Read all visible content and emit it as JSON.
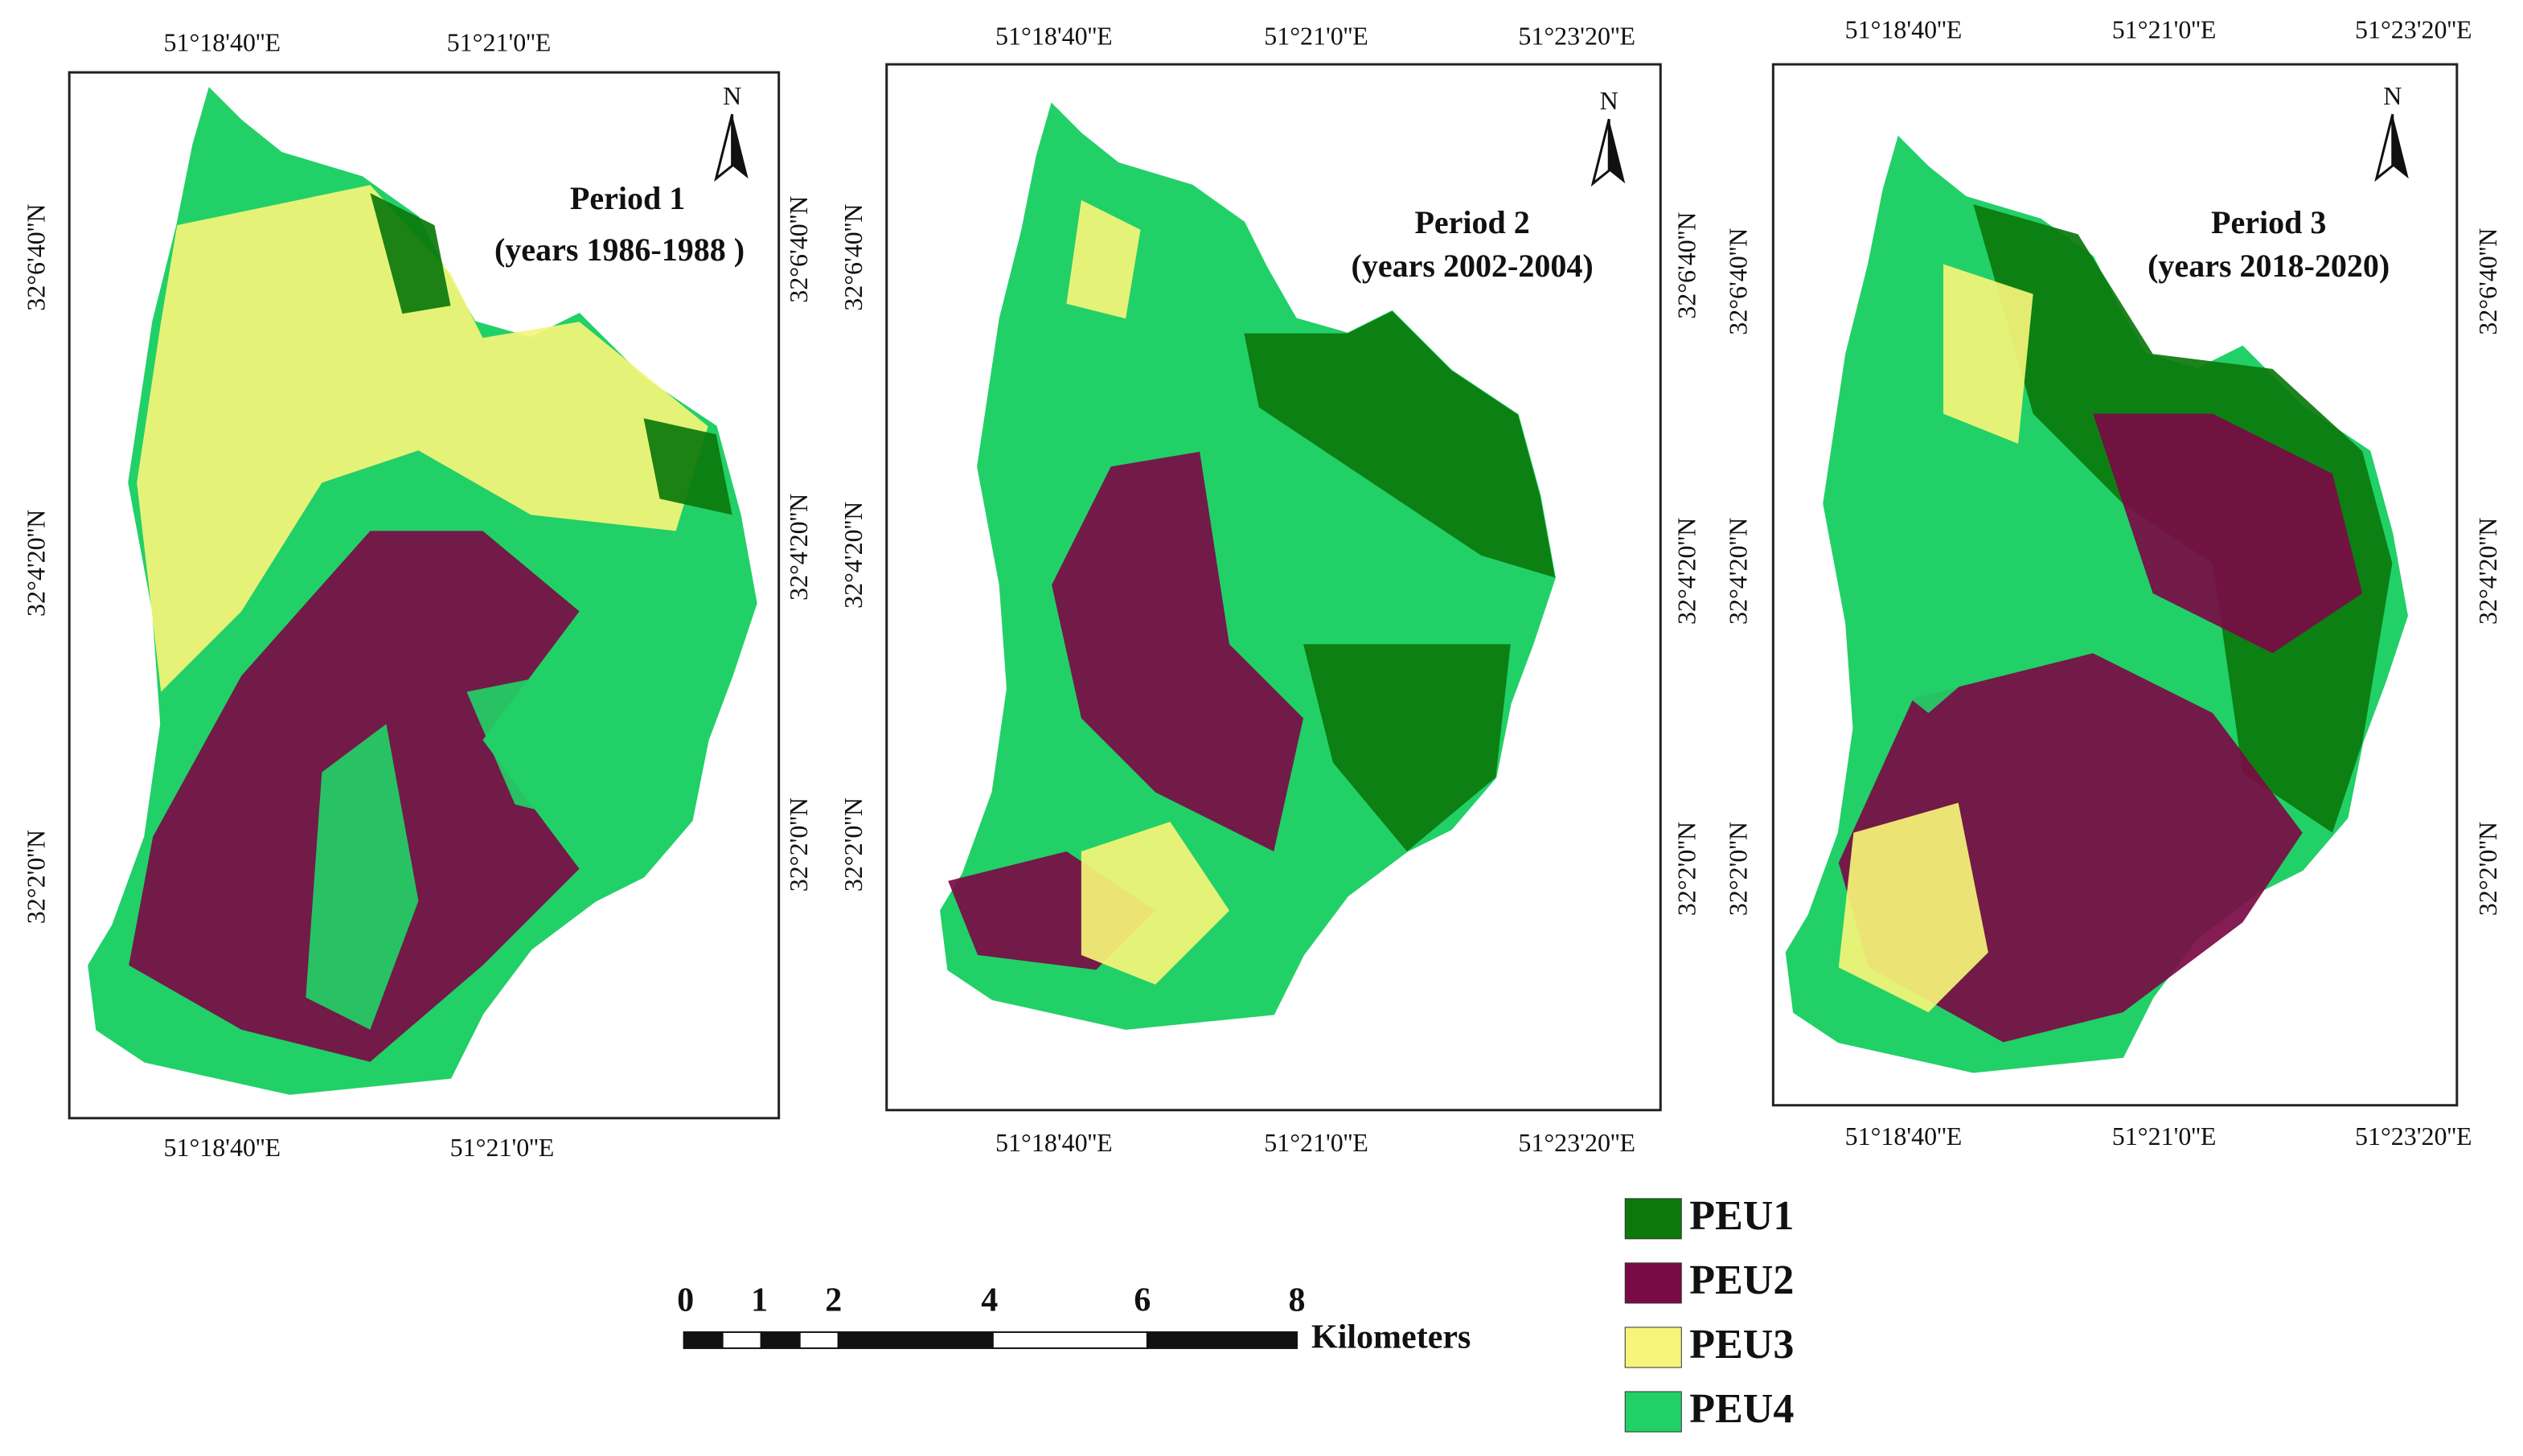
{
  "panels": [
    {
      "title": "Period 1",
      "subtitle": "(years 1986-1988 )",
      "north": "N",
      "top_ticks": [
        "51°18'40''E",
        "51°21'0''E"
      ],
      "bottom_ticks": [
        "51°18'40''E",
        "51°21'0''E"
      ],
      "left_ticks": [
        "32°6'40''N",
        "32°4'20''N",
        "32°2'0''N"
      ],
      "right_ticks": [
        "32°6'40''N",
        "32°4'20''N",
        "32°2'0''N"
      ]
    },
    {
      "title": "Period 2",
      "subtitle": "(years 2002-2004)",
      "north": "N",
      "top_ticks": [
        "51°18'40''E",
        "51°21'0''E",
        "51°23'20''E"
      ],
      "bottom_ticks": [
        "51°18'40''E",
        "51°21'0''E",
        "51°23'20''E"
      ],
      "left_ticks": [
        "32°6'40''N",
        "32°4'20''N",
        "32°2'0''N"
      ],
      "right_ticks": [
        "32°6'40''N",
        "32°4'20''N",
        "32°2'0''N"
      ]
    },
    {
      "title": "Period 3",
      "subtitle": "(years 2018-2020)",
      "north": "N",
      "top_ticks": [
        "51°18'40''E",
        "51°21'0''E",
        "51°23'20''E"
      ],
      "bottom_ticks": [
        "51°18'40''E",
        "51°21'0''E",
        "51°23'20''E"
      ],
      "left_ticks": [
        "32°6'40''N",
        "32°4'20''N",
        "32°2'0''N"
      ],
      "right_ticks": [
        "32°6'40''N",
        "32°4'20''N",
        "32°2'0''N"
      ]
    }
  ],
  "legend": [
    {
      "label": "PEU1",
      "color": "#0b780b"
    },
    {
      "label": "PEU2",
      "color": "#7a0a45"
    },
    {
      "label": "PEU3",
      "color": "#f6f47a"
    },
    {
      "label": "PEU4",
      "color": "#22d068"
    }
  ],
  "scale_bar": {
    "labels": [
      "0",
      "1",
      "2",
      "4",
      "6",
      "8"
    ],
    "unit": "Kilometers"
  }
}
